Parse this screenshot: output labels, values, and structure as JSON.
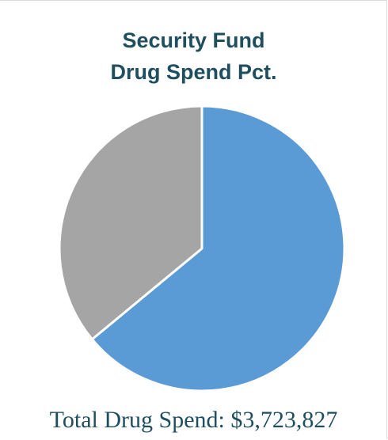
{
  "chart_data": {
    "type": "pie",
    "title_lines": [
      "Security Fund",
      "Drug Spend Pct."
    ],
    "slices": [
      {
        "value": 0.64,
        "color": "#5b9bd5"
      },
      {
        "value": 0.36,
        "color": "#a5a5a5"
      }
    ],
    "legend": "none"
  },
  "footer": {
    "total_text": "Total Drug Spend: $3,723,827"
  }
}
